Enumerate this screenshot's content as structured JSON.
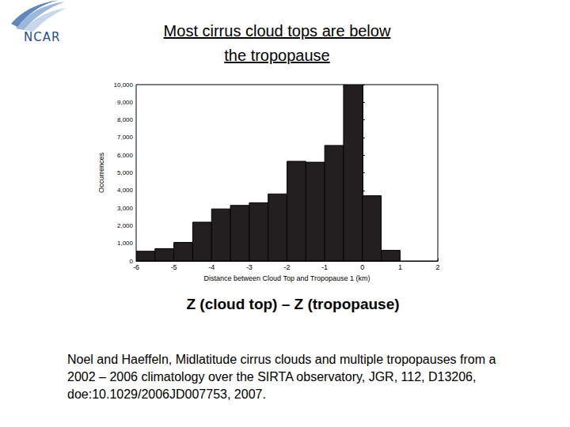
{
  "chart_data": {
    "type": "histogram",
    "title": "Most cirrus cloud tops are below the tropopause",
    "xlabel": "Distance between Cloud Top and Tropopause 1 (km)",
    "ylabel": "Occurrences",
    "bins": [
      -6,
      -5.5,
      -5,
      -4.5,
      -4,
      -3.5,
      -3,
      -2.5,
      -2,
      -1.5,
      -1,
      -0.5,
      0,
      0.5,
      1
    ],
    "values": [
      550,
      700,
      1050,
      2200,
      2950,
      3150,
      3300,
      3800,
      5650,
      5600,
      6550,
      10000,
      3700,
      600
    ],
    "color": "#231f20",
    "xlim": [
      -6,
      2
    ],
    "xticks": [
      -6,
      -5,
      -4,
      -3,
      -2,
      -1,
      0,
      1,
      2
    ],
    "ylim": [
      0,
      10000
    ],
    "yticks": [
      0,
      1000,
      2000,
      3000,
      4000,
      5000,
      6000,
      7000,
      8000,
      9000,
      10000
    ],
    "grid": false,
    "annotations": [
      "Z (cloud top) – Z (tropopause)",
      "Noel and Haeffeln, Midlatitude cirrus clouds and multiple tropopauses from a 2002 – 2006 climatology over the SIRTA observatory, JGR, 112, D13206, doe:10.1029/2006JD007753, 2007."
    ],
    "logo": "NCAR"
  }
}
